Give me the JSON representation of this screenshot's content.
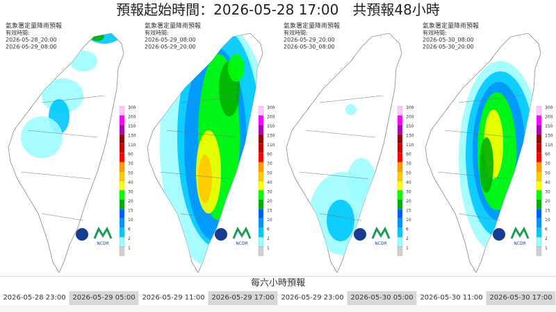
{
  "title": "預報起始時間：2026-05-28 17:00　共預報48小時",
  "panels": [
    {
      "header": "氣象署定量降雨預報",
      "valid": "有效時間:",
      "start": "2026-05-28_20:00",
      "end": "2026-05-29_08:00"
    },
    {
      "header": "氣象署定量降雨預報",
      "valid": "有效時間:",
      "start": "2026-05-29_08:00",
      "end": "2026-05-29_20:00"
    },
    {
      "header": "氣象署定量降雨預報",
      "valid": "有效時間:",
      "start": "2026-05-29_20:00",
      "end": "2026-05-30_08:00"
    },
    {
      "header": "氣象署定量降雨預報",
      "valid": "有效時間:",
      "start": "2026-05-30_08:00",
      "end": "2026-05-30_20:00"
    }
  ],
  "logo_text": "NCDR",
  "scale": {
    "labels": [
      300,
      200,
      150,
      130,
      110,
      90,
      70,
      50,
      40,
      30,
      20,
      15,
      10,
      6,
      2,
      1
    ],
    "colors": [
      "#fdc9fd",
      "#ff00ff",
      "#b000c0",
      "#9a0000",
      "#c60000",
      "#ff0000",
      "#ff9a00",
      "#ffc800",
      "#ffff00",
      "#00ff00",
      "#00b000",
      "#005eff",
      "#0096ff",
      "#00c8ff",
      "#9cfcff",
      "#cfcfcf"
    ]
  },
  "section_title": "每六小時預報",
  "tabs": [
    "2026-05-28 23:00",
    "2026-05-29 05:00",
    "2026-05-29 11:00",
    "2026-05-29 17:00",
    "2026-05-29 23:00",
    "2026-05-30 05:00",
    "2026-05-30 11:00",
    "2026-05-30 17:00"
  ]
}
